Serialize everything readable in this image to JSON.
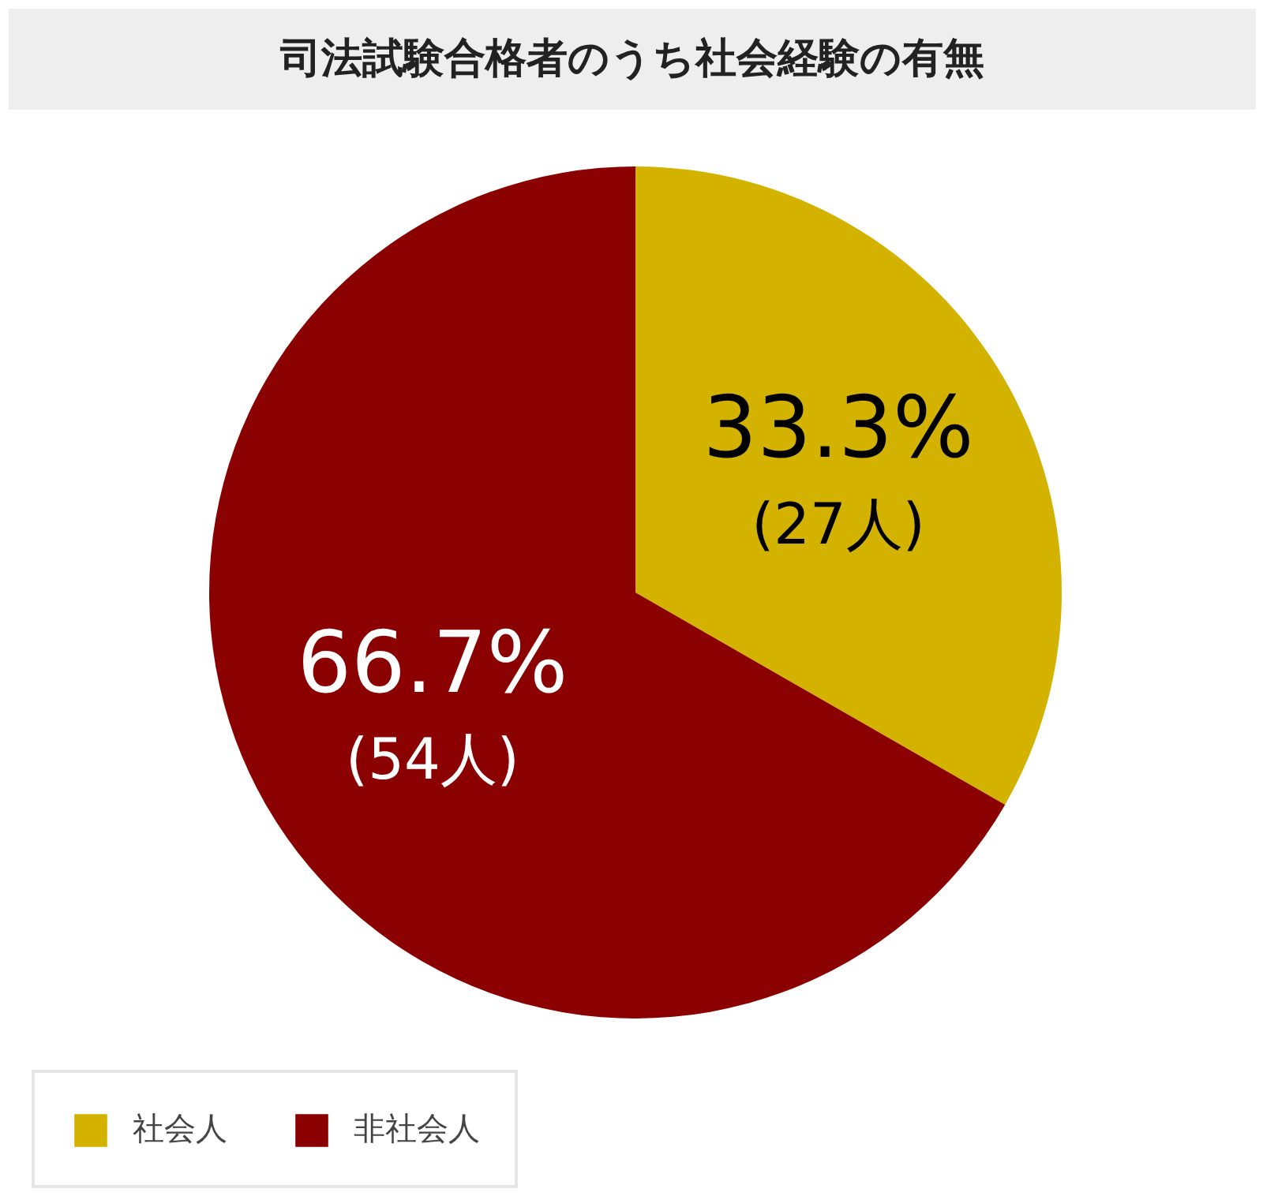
{
  "chart_data": {
    "type": "pie",
    "title": "司法試験合格者のうち社会経験の有無",
    "categories": [
      "社会人",
      "非社会人"
    ],
    "values": [
      33.3,
      66.7
    ],
    "colors": [
      "#d4b200",
      "#8b0000"
    ],
    "value_labels": [
      "33.3%\n(27人)",
      "66.7%\n(54人)"
    ],
    "legend": "bottom"
  }
}
